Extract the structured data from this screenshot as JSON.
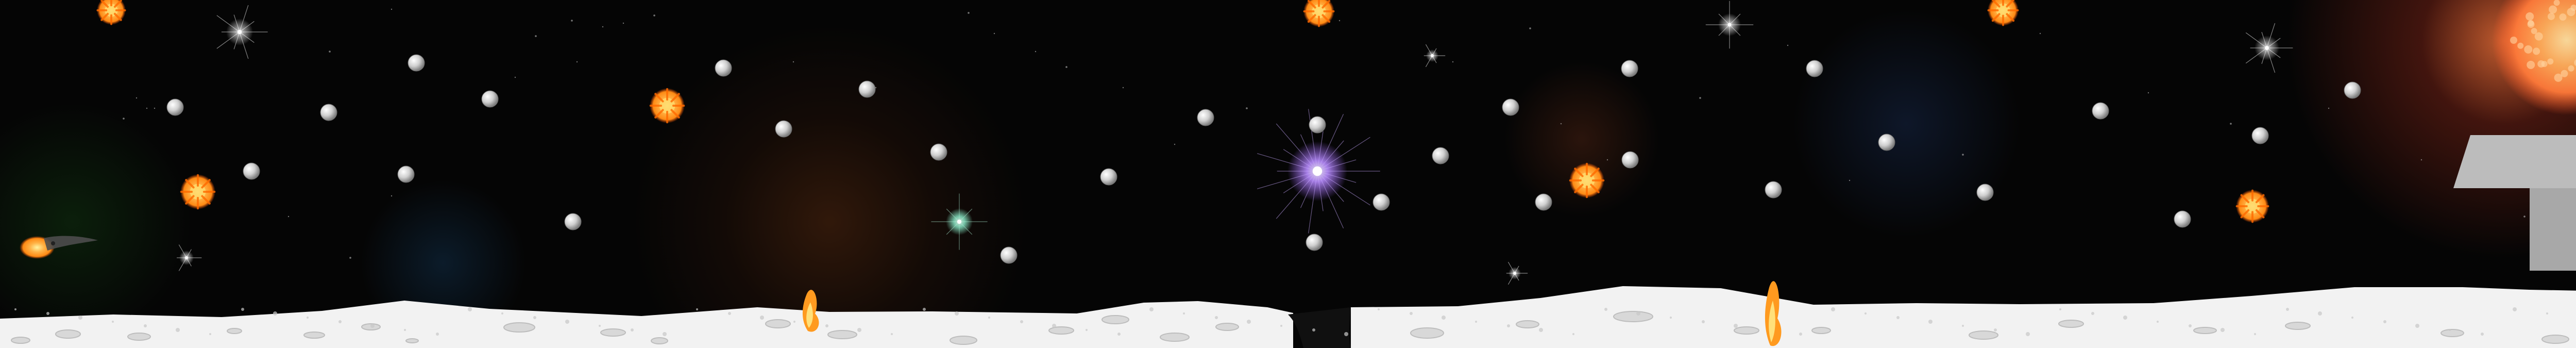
{
  "scene": {
    "background": "#050505",
    "ground_color": "#f2f2f2",
    "ground_shadow": "#bdbdbd",
    "crater_color": "#d8d8d8",
    "crack_color": "#101010",
    "tower_color": "#a8a8a8",
    "orb_color": "#cfcfcf",
    "fireball_color": "#ff8a14",
    "fireball_glow": "#ffb347",
    "star_glow": "#ffffff",
    "star_purple": "#b88cff",
    "star_green": "#7fd8b8",
    "sun_color": "#ff7a3a"
  },
  "hud": {
    "score": ""
  },
  "entities": {
    "orbs": "silver-orb",
    "fireballs": "fireball",
    "player_flare": "meteor-projectile",
    "stars": "star-flare",
    "ground": "moon-surface",
    "tower": "gray-tower",
    "sun": "sun-corona"
  }
}
